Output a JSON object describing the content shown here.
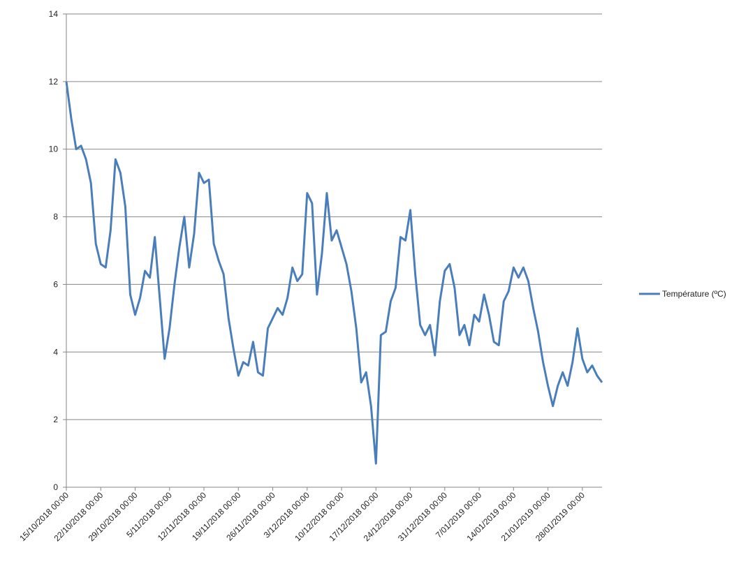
{
  "chart_data": {
    "type": "line",
    "x": [
      "15/10/2018 00:00",
      "16/10/2018 00:00",
      "17/10/2018 00:00",
      "18/10/2018 00:00",
      "19/10/2018 00:00",
      "20/10/2018 00:00",
      "21/10/2018 00:00",
      "22/10/2018 00:00",
      "23/10/2018 00:00",
      "24/10/2018 00:00",
      "25/10/2018 00:00",
      "26/10/2018 00:00",
      "27/10/2018 00:00",
      "28/10/2018 00:00",
      "29/10/2018 00:00",
      "30/10/2018 00:00",
      "31/10/2018 00:00",
      "1/11/2018 00:00",
      "2/11/2018 00:00",
      "3/11/2018 00:00",
      "4/11/2018 00:00",
      "5/11/2018 00:00",
      "6/11/2018 00:00",
      "7/11/2018 00:00",
      "8/11/2018 00:00",
      "9/11/2018 00:00",
      "10/11/2018 00:00",
      "11/11/2018 00:00",
      "12/11/2018 00:00",
      "13/11/2018 00:00",
      "14/11/2018 00:00",
      "15/11/2018 00:00",
      "16/11/2018 00:00",
      "17/11/2018 00:00",
      "18/11/2018 00:00",
      "19/11/2018 00:00",
      "20/11/2018 00:00",
      "21/11/2018 00:00",
      "22/11/2018 00:00",
      "23/11/2018 00:00",
      "24/11/2018 00:00",
      "25/11/2018 00:00",
      "26/11/2018 00:00",
      "27/11/2018 00:00",
      "28/11/2018 00:00",
      "29/11/2018 00:00",
      "30/11/2018 00:00",
      "1/12/2018 00:00",
      "2/12/2018 00:00",
      "3/12/2018 00:00",
      "4/12/2018 00:00",
      "5/12/2018 00:00",
      "6/12/2018 00:00",
      "7/12/2018 00:00",
      "8/12/2018 00:00",
      "9/12/2018 00:00",
      "10/12/2018 00:00",
      "11/12/2018 00:00",
      "12/12/2018 00:00",
      "13/12/2018 00:00",
      "14/12/2018 00:00",
      "15/12/2018 00:00",
      "16/12/2018 00:00",
      "17/12/2018 00:00",
      "18/12/2018 00:00",
      "19/12/2018 00:00",
      "20/12/2018 00:00",
      "21/12/2018 00:00",
      "22/12/2018 00:00",
      "23/12/2018 00:00",
      "24/12/2018 00:00",
      "25/12/2018 00:00",
      "26/12/2018 00:00",
      "27/12/2018 00:00",
      "28/12/2018 00:00",
      "29/12/2018 00:00",
      "30/12/2018 00:00",
      "31/12/2018 00:00",
      "1/01/2019 00:00",
      "2/01/2019 00:00",
      "3/01/2019 00:00",
      "4/01/2019 00:00",
      "5/01/2019 00:00",
      "6/01/2019 00:00",
      "7/01/2019 00:00",
      "8/01/2019 00:00",
      "9/01/2019 00:00",
      "10/01/2019 00:00",
      "11/01/2019 00:00",
      "12/01/2019 00:00",
      "13/01/2019 00:00",
      "14/01/2019 00:00",
      "15/01/2019 00:00",
      "16/01/2019 00:00",
      "17/01/2019 00:00",
      "18/01/2019 00:00",
      "19/01/2019 00:00",
      "20/01/2019 00:00",
      "21/01/2019 00:00",
      "22/01/2019 00:00",
      "23/01/2019 00:00",
      "24/01/2019 00:00",
      "25/01/2019 00:00",
      "26/01/2019 00:00",
      "27/01/2019 00:00",
      "28/01/2019 00:00",
      "29/01/2019 00:00",
      "30/01/2019 00:00",
      "31/01/2019 00:00",
      "1/02/2019 00:00"
    ],
    "series": [
      {
        "name": "Température (ºC)",
        "color": "#4a7ebb",
        "values": [
          12,
          10.9,
          10,
          10.1,
          9.7,
          9,
          7.2,
          6.6,
          6.5,
          7.6,
          9.7,
          9.3,
          8.3,
          5.7,
          5.1,
          5.6,
          6.4,
          6.2,
          7.4,
          5.6,
          3.8,
          4.7,
          6,
          7.1,
          8,
          6.5,
          7.5,
          9.3,
          9,
          9.1,
          7.2,
          6.7,
          6.3,
          5,
          4.1,
          3.3,
          3.7,
          3.6,
          4.3,
          3.4,
          3.3,
          4.7,
          5,
          5.3,
          5.1,
          5.6,
          6.5,
          6.1,
          6.3,
          8.7,
          8.4,
          5.7,
          6.9,
          8.7,
          7.3,
          7.6,
          7.1,
          6.6,
          5.8,
          4.7,
          3.1,
          3.4,
          2.4,
          0.7,
          4.5,
          4.6,
          5.5,
          5.9,
          7.4,
          7.3,
          8.2,
          6.3,
          4.8,
          4.5,
          4.8,
          3.9,
          5.5,
          6.4,
          6.6,
          5.9,
          4.5,
          4.8,
          4.2,
          5.1,
          4.9,
          5.7,
          5.1,
          4.3,
          4.2,
          5.5,
          5.8,
          6.5,
          6.2,
          6.5,
          6.1,
          5.3,
          4.6,
          3.7,
          3,
          2.4,
          3,
          3.4,
          3,
          3.7,
          4.7,
          3.8,
          3.4,
          3.6,
          3.3,
          3.1
        ]
      }
    ],
    "xlim": [
      "15/10/2018 00:00",
      "1/02/2019 00:00"
    ],
    "xticks": [
      "15/10/2018 00:00",
      "22/10/2018 00:00",
      "29/10/2018 00:00",
      "5/11/2018 00:00",
      "12/11/2018 00:00",
      "19/11/2018 00:00",
      "26/11/2018 00:00",
      "3/12/2018 00:00",
      "10/12/2018 00:00",
      "17/12/2018 00:00",
      "24/12/2018 00:00",
      "31/12/2018 00:00",
      "7/01/2019 00:00",
      "14/01/2019 00:00",
      "21/01/2019 00:00",
      "28/01/2019 00:00"
    ],
    "ylim": [
      0,
      14
    ],
    "yticks": [
      0,
      2,
      4,
      6,
      8,
      10,
      12,
      14
    ],
    "grid": true,
    "legend": "right"
  }
}
